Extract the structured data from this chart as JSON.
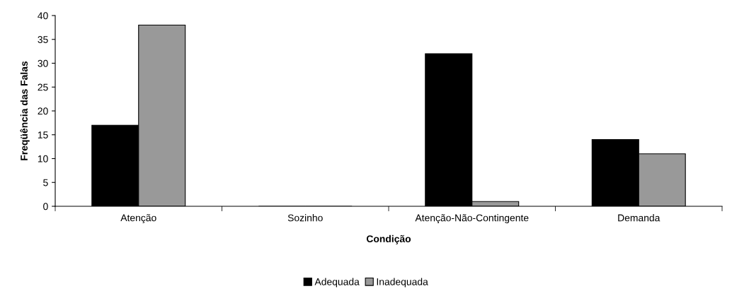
{
  "chart_data": {
    "type": "bar",
    "xlabel": "Condição",
    "ylabel": "Freqüência das Falas",
    "categories": [
      "Atenção",
      "Sozinho",
      "Atenção-Não-Contingente",
      "Demanda"
    ],
    "series": [
      {
        "name": "Adequada",
        "color": "#000000",
        "values": [
          17,
          0,
          32,
          14
        ]
      },
      {
        "name": "Inadequada",
        "color": "#999999",
        "values": [
          38,
          0,
          1,
          11
        ]
      }
    ],
    "ylim": [
      0,
      40
    ],
    "yticks": [
      0,
      5,
      10,
      15,
      20,
      25,
      30,
      35,
      40
    ],
    "grid": false,
    "legend": "bottom"
  }
}
